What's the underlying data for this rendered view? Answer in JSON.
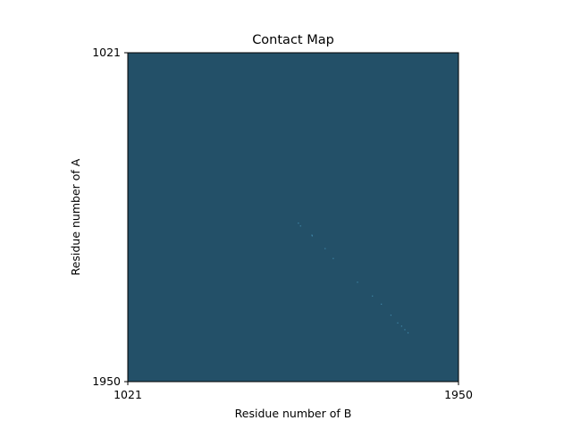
{
  "chart_data": {
    "type": "heatmap",
    "title": "Contact Map",
    "xlabel": "Residue number of B",
    "ylabel": "Residue number of A",
    "xlim": [
      1021,
      1950
    ],
    "ylim": [
      1021,
      1950
    ],
    "x_ticks": [
      "1021",
      "1950"
    ],
    "y_ticks": [
      "1021",
      "1950"
    ],
    "y_inverted": true,
    "grid": false,
    "background_color": "#235068",
    "contact_color": "#3f86a8",
    "contacts": [
      {
        "x": 1500,
        "y": 1502
      },
      {
        "x": 1506,
        "y": 1510
      },
      {
        "x": 1538,
        "y": 1536
      },
      {
        "x": 1539,
        "y": 1538
      },
      {
        "x": 1575,
        "y": 1574
      },
      {
        "x": 1598,
        "y": 1602
      },
      {
        "x": 1666,
        "y": 1669
      },
      {
        "x": 1708,
        "y": 1708
      },
      {
        "x": 1733,
        "y": 1731
      },
      {
        "x": 1760,
        "y": 1762
      },
      {
        "x": 1779,
        "y": 1784
      },
      {
        "x": 1790,
        "y": 1793
      },
      {
        "x": 1799,
        "y": 1803
      },
      {
        "x": 1808,
        "y": 1812
      }
    ]
  }
}
